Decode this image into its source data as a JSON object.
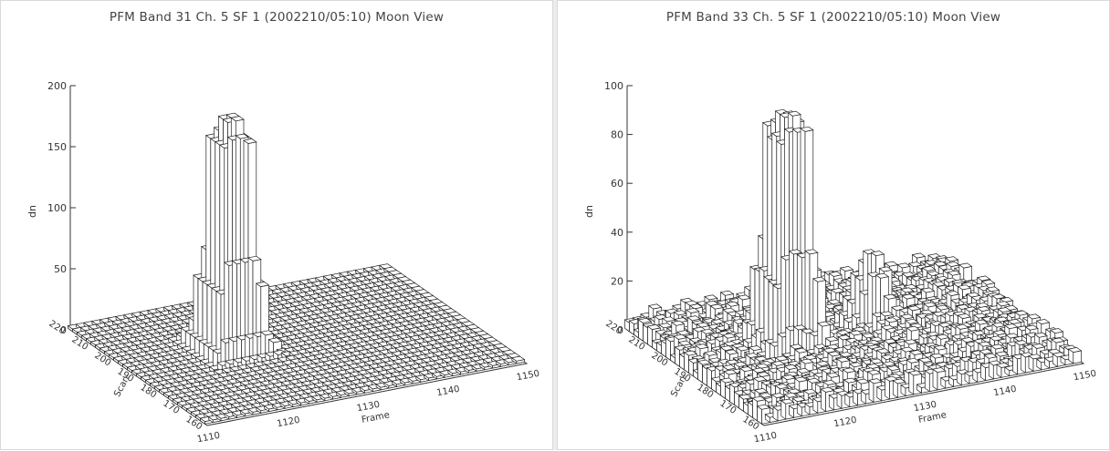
{
  "chart_data": [
    {
      "type": "bar",
      "title": "PFM Band 31 Ch. 5 SF 1 (2002210/05:10) Moon View",
      "zlabel": "dn",
      "xlabel": "Frame",
      "ylabel": "Scan",
      "zlim": [
        0,
        200
      ],
      "xlim": [
        1110,
        1150
      ],
      "ylim": [
        160,
        220
      ],
      "z_ticks": [
        "0",
        "50",
        "100",
        "150",
        "200"
      ],
      "x_ticks": [
        "1110",
        "1120",
        "1130",
        "1140",
        "1150"
      ],
      "y_ticks": [
        "160",
        "170",
        "180",
        "190",
        "200",
        "210",
        "220"
      ],
      "surface": {
        "background_dn": 2,
        "peak_dn": 190,
        "peak_frame_range": [
          1121,
          1124
        ],
        "peak_scan_range": [
          190,
          198
        ]
      }
    },
    {
      "type": "bar",
      "title": "PFM Band 33 Ch. 5 SF 1 (2002210/05:10) Moon View",
      "zlabel": "dn",
      "xlabel": "Frame",
      "ylabel": "Scan",
      "zlim": [
        0,
        100
      ],
      "xlim": [
        1110,
        1150
      ],
      "ylim": [
        160,
        220
      ],
      "z_ticks": [
        "0",
        "20",
        "40",
        "60",
        "80",
        "100"
      ],
      "x_ticks": [
        "1110",
        "1120",
        "1130",
        "1140",
        "1150"
      ],
      "y_ticks": [
        "160",
        "170",
        "180",
        "190",
        "200",
        "210",
        "220"
      ],
      "surface": {
        "background_dn": 2,
        "noise_dn": 6,
        "peak_dn": 95,
        "peak_frame_range": [
          1121,
          1124
        ],
        "peak_scan_range": [
          190,
          198
        ],
        "secondary_peak_dn": 30,
        "secondary_peak_frame": 1134,
        "secondary_peak_scan": 196
      }
    }
  ]
}
